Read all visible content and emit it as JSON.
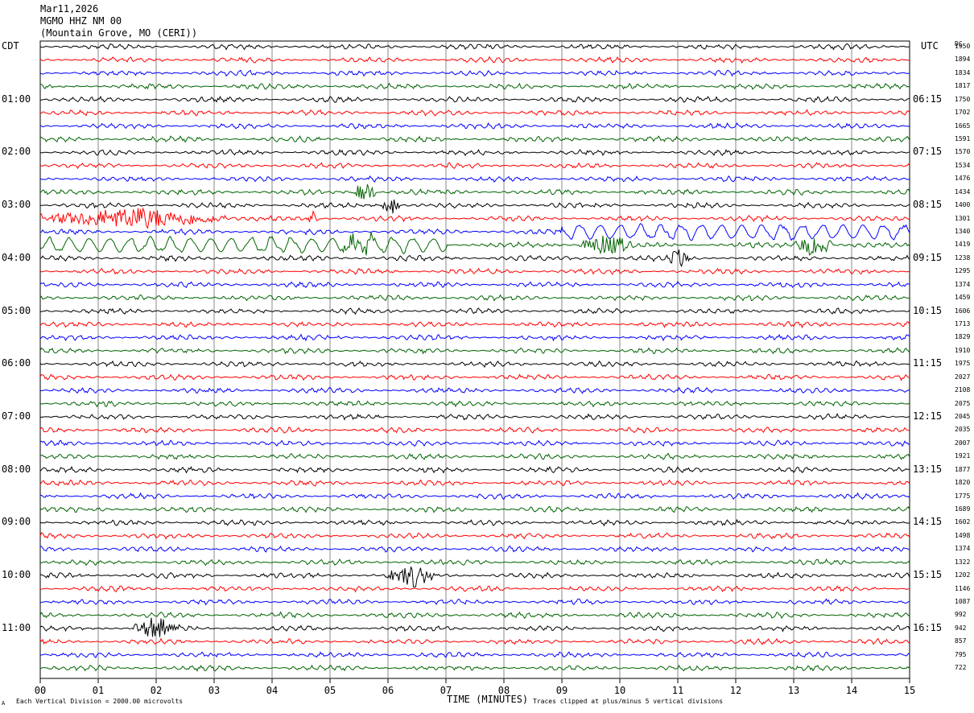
{
  "header": {
    "date": "Mar11,2026",
    "station": "MGMO HHZ NM 00",
    "location": "(Mountain Grove, MO (CERI))"
  },
  "corner_left": "CDT",
  "corner_right": "UTC",
  "corner_dc": "DC",
  "footer": {
    "scale_note": "Each Vertical Division = 2000.00 microvolts",
    "xlabel": "TIME (MINUTES)",
    "clip_note": "Traces clipped at plus/minus 5 vertical divisions",
    "mark": "A"
  },
  "chart_data": {
    "type": "line",
    "title": "MGMO HHZ NM 00",
    "xlabel": "TIME (MINUTES)",
    "ylabel": "",
    "xlim": [
      0,
      15
    ],
    "x_ticks": [
      "00",
      "01",
      "02",
      "03",
      "04",
      "05",
      "06",
      "07",
      "08",
      "09",
      "10",
      "11",
      "12",
      "13",
      "14",
      "15"
    ],
    "left_hour_labels": [
      {
        "row": 4,
        "label": "01:00"
      },
      {
        "row": 8,
        "label": "02:00"
      },
      {
        "row": 12,
        "label": "03:00"
      },
      {
        "row": 16,
        "label": "04:00"
      },
      {
        "row": 20,
        "label": "05:00"
      },
      {
        "row": 24,
        "label": "06:00"
      },
      {
        "row": 28,
        "label": "07:00"
      },
      {
        "row": 32,
        "label": "08:00"
      },
      {
        "row": 36,
        "label": "09:00"
      },
      {
        "row": 40,
        "label": "10:00"
      },
      {
        "row": 44,
        "label": "11:00"
      }
    ],
    "right_hour_labels": [
      {
        "row": 4,
        "label": "06:15"
      },
      {
        "row": 8,
        "label": "07:15"
      },
      {
        "row": 12,
        "label": "08:15"
      },
      {
        "row": 16,
        "label": "09:15"
      },
      {
        "row": 20,
        "label": "10:15"
      },
      {
        "row": 24,
        "label": "11:15"
      },
      {
        "row": 28,
        "label": "12:15"
      },
      {
        "row": 32,
        "label": "13:15"
      },
      {
        "row": 36,
        "label": "14:15"
      },
      {
        "row": 40,
        "label": "15:15"
      },
      {
        "row": 44,
        "label": "16:15"
      }
    ],
    "dc_offsets": [
      "1950",
      "1894",
      "1834",
      "1817",
      "1750",
      "1702",
      "1665",
      "1591",
      "1570",
      "1534",
      "1476",
      "1434",
      "1400",
      "1301",
      "1340",
      "1419",
      "1238",
      "1295",
      "1374",
      "1459",
      "1606",
      "1713",
      "1829",
      "1910",
      "1975",
      "2027",
      "2108",
      "2075",
      "2045",
      "2035",
      "2007",
      "1921",
      "1877",
      "1820",
      "1775",
      "1689",
      "1602",
      "1498",
      "1374",
      "1322",
      "1202",
      "1146",
      "1087",
      "992",
      "942",
      "857",
      "795",
      "722"
    ],
    "trace_colors": [
      "#000000",
      "#ff0000",
      "#0000ff",
      "#006400"
    ],
    "series": [
      {
        "type": "noise-trace",
        "rows": "all",
        "amplitude_divisions": 0.5
      },
      {
        "type": "event",
        "row": 11,
        "minute_range": [
          5.4,
          5.8
        ]
      },
      {
        "type": "event",
        "row": 12,
        "minute_range": [
          5.9,
          6.2
        ]
      },
      {
        "type": "event",
        "row": 13,
        "minute_range": [
          0,
          3.2
        ]
      },
      {
        "type": "event",
        "row": 13,
        "minute_range": [
          4.6,
          4.8
        ]
      },
      {
        "type": "oscillation",
        "row": 14,
        "minute_range": [
          9.0,
          15.0
        ]
      },
      {
        "type": "oscillation",
        "row": 15,
        "minute_range": [
          0,
          7.0
        ]
      },
      {
        "type": "event",
        "row": 15,
        "minute_range": [
          5.2,
          5.8
        ]
      },
      {
        "type": "event",
        "row": 15,
        "minute_range": [
          9.3,
          10.2
        ]
      },
      {
        "type": "event",
        "row": 15,
        "minute_range": [
          13.0,
          13.7
        ]
      },
      {
        "type": "event",
        "row": 16,
        "minute_range": [
          10.8,
          11.2
        ]
      },
      {
        "type": "event",
        "row": 40,
        "minute_range": [
          6.0,
          6.8
        ]
      },
      {
        "type": "event",
        "row": 44,
        "minute_range": [
          1.6,
          2.4
        ]
      }
    ]
  }
}
